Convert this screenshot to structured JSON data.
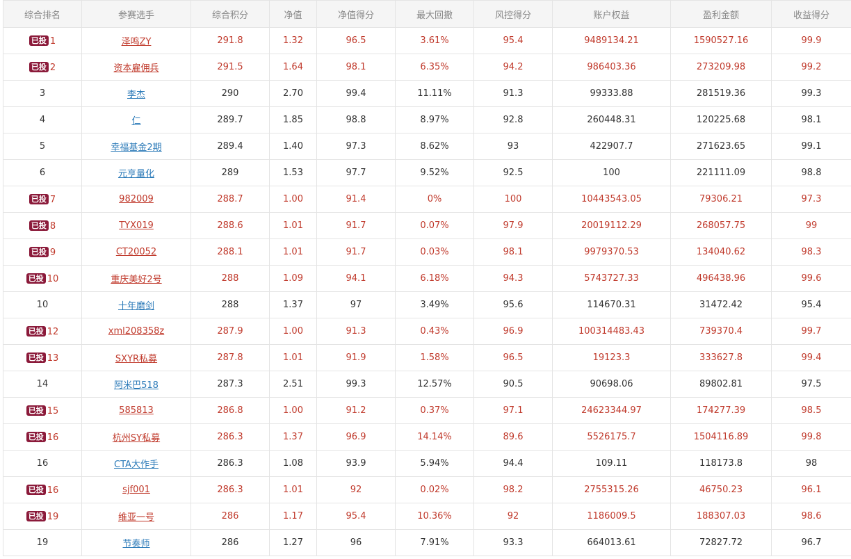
{
  "colors": {
    "invested_text": "#c0392b",
    "normal_text": "#333333",
    "link_blue": "#2b7ab8",
    "badge_bg": "#8b1a3a",
    "header_bg": "#f5f5f5"
  },
  "badge_label": "已投",
  "headers": [
    "综合排名",
    "参赛选手",
    "综合积分",
    "净值",
    "净值得分",
    "最大回撤",
    "风控得分",
    "账户权益",
    "盈利金额",
    "收益得分"
  ],
  "rows": [
    {
      "invested": true,
      "rank": "1",
      "name": "泽鸣ZY",
      "score": "291.8",
      "nav": "1.32",
      "nav_score": "96.5",
      "max_dd": "3.61%",
      "risk_score": "95.4",
      "equity": "9489134.21",
      "profit": "1590527.16",
      "return_score": "99.9"
    },
    {
      "invested": true,
      "rank": "2",
      "name": "资本雇佣兵",
      "score": "291.5",
      "nav": "1.64",
      "nav_score": "98.1",
      "max_dd": "6.35%",
      "risk_score": "94.2",
      "equity": "986403.36",
      "profit": "273209.98",
      "return_score": "99.2"
    },
    {
      "invested": false,
      "rank": "3",
      "name": "李杰",
      "score": "290",
      "nav": "2.70",
      "nav_score": "99.4",
      "max_dd": "11.11%",
      "risk_score": "91.3",
      "equity": "99333.88",
      "profit": "281519.36",
      "return_score": "99.3"
    },
    {
      "invested": false,
      "rank": "4",
      "name": "仁",
      "score": "289.7",
      "nav": "1.85",
      "nav_score": "98.8",
      "max_dd": "8.97%",
      "risk_score": "92.8",
      "equity": "260448.31",
      "profit": "120225.68",
      "return_score": "98.1"
    },
    {
      "invested": false,
      "rank": "5",
      "name": "幸福基金2期",
      "score": "289.4",
      "nav": "1.40",
      "nav_score": "97.3",
      "max_dd": "8.62%",
      "risk_score": "93",
      "equity": "422907.7",
      "profit": "271623.65",
      "return_score": "99.1"
    },
    {
      "invested": false,
      "rank": "6",
      "name": "元亨量化",
      "score": "289",
      "nav": "1.53",
      "nav_score": "97.7",
      "max_dd": "9.52%",
      "risk_score": "92.5",
      "equity": "100",
      "profit": "221111.09",
      "return_score": "98.8"
    },
    {
      "invested": true,
      "rank": "7",
      "name": "982009",
      "score": "288.7",
      "nav": "1.00",
      "nav_score": "91.4",
      "max_dd": "0%",
      "risk_score": "100",
      "equity": "10443543.05",
      "profit": "79306.21",
      "return_score": "97.3"
    },
    {
      "invested": true,
      "rank": "8",
      "name": "TYX019",
      "score": "288.6",
      "nav": "1.01",
      "nav_score": "91.7",
      "max_dd": "0.07%",
      "risk_score": "97.9",
      "equity": "20019112.29",
      "profit": "268057.75",
      "return_score": "99"
    },
    {
      "invested": true,
      "rank": "9",
      "name": "CT20052",
      "score": "288.1",
      "nav": "1.01",
      "nav_score": "91.7",
      "max_dd": "0.03%",
      "risk_score": "98.1",
      "equity": "9979370.53",
      "profit": "134040.62",
      "return_score": "98.3"
    },
    {
      "invested": true,
      "rank": "10",
      "name": "重庆美好2号",
      "score": "288",
      "nav": "1.09",
      "nav_score": "94.1",
      "max_dd": "6.18%",
      "risk_score": "94.3",
      "equity": "5743727.33",
      "profit": "496438.96",
      "return_score": "99.6"
    },
    {
      "invested": false,
      "rank": "10",
      "name": "十年磨剑",
      "score": "288",
      "nav": "1.37",
      "nav_score": "97",
      "max_dd": "3.49%",
      "risk_score": "95.6",
      "equity": "114670.31",
      "profit": "31472.42",
      "return_score": "95.4"
    },
    {
      "invested": true,
      "rank": "12",
      "name": "xml208358z",
      "score": "287.9",
      "nav": "1.00",
      "nav_score": "91.3",
      "max_dd": "0.43%",
      "risk_score": "96.9",
      "equity": "100314483.43",
      "profit": "739370.4",
      "return_score": "99.7"
    },
    {
      "invested": true,
      "rank": "13",
      "name": "SXYR私募",
      "score": "287.8",
      "nav": "1.01",
      "nav_score": "91.9",
      "max_dd": "1.58%",
      "risk_score": "96.5",
      "equity": "19123.3",
      "profit": "333627.8",
      "return_score": "99.4"
    },
    {
      "invested": false,
      "rank": "14",
      "name": "阿米巴518",
      "score": "287.3",
      "nav": "2.51",
      "nav_score": "99.3",
      "max_dd": "12.57%",
      "risk_score": "90.5",
      "equity": "90698.06",
      "profit": "89802.81",
      "return_score": "97.5"
    },
    {
      "invested": true,
      "rank": "15",
      "name": "585813",
      "score": "286.8",
      "nav": "1.00",
      "nav_score": "91.2",
      "max_dd": "0.37%",
      "risk_score": "97.1",
      "equity": "24623344.97",
      "profit": "174277.39",
      "return_score": "98.5"
    },
    {
      "invested": true,
      "rank": "16",
      "name": "杭州SY私募",
      "score": "286.3",
      "nav": "1.37",
      "nav_score": "96.9",
      "max_dd": "14.14%",
      "risk_score": "89.6",
      "equity": "5526175.7",
      "profit": "1504116.89",
      "return_score": "99.8"
    },
    {
      "invested": false,
      "rank": "16",
      "name": "CTA大作手",
      "score": "286.3",
      "nav": "1.08",
      "nav_score": "93.9",
      "max_dd": "5.94%",
      "risk_score": "94.4",
      "equity": "109.11",
      "profit": "118173.8",
      "return_score": "98"
    },
    {
      "invested": true,
      "rank": "16",
      "name": "sjf001",
      "score": "286.3",
      "nav": "1.01",
      "nav_score": "92",
      "max_dd": "0.02%",
      "risk_score": "98.2",
      "equity": "2755315.26",
      "profit": "46750.23",
      "return_score": "96.1"
    },
    {
      "invested": true,
      "rank": "19",
      "name": "维亚一号",
      "score": "286",
      "nav": "1.17",
      "nav_score": "95.4",
      "max_dd": "10.36%",
      "risk_score": "92",
      "equity": "1186009.5",
      "profit": "188307.03",
      "return_score": "98.6"
    },
    {
      "invested": false,
      "rank": "19",
      "name": "节奏师",
      "score": "286",
      "nav": "1.27",
      "nav_score": "96",
      "max_dd": "7.91%",
      "risk_score": "93.3",
      "equity": "664013.61",
      "profit": "72827.72",
      "return_score": "96.7"
    }
  ]
}
